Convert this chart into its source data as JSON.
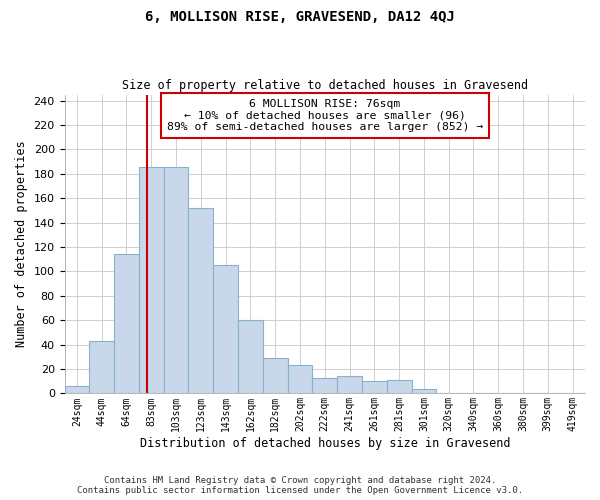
{
  "title": "6, MOLLISON RISE, GRAVESEND, DA12 4QJ",
  "subtitle": "Size of property relative to detached houses in Gravesend",
  "xlabel": "Distribution of detached houses by size in Gravesend",
  "ylabel": "Number of detached properties",
  "footer_line1": "Contains HM Land Registry data © Crown copyright and database right 2024.",
  "footer_line2": "Contains public sector information licensed under the Open Government Licence v3.0.",
  "bar_labels": [
    "24sqm",
    "44sqm",
    "64sqm",
    "83sqm",
    "103sqm",
    "123sqm",
    "143sqm",
    "162sqm",
    "182sqm",
    "202sqm",
    "222sqm",
    "241sqm",
    "261sqm",
    "281sqm",
    "301sqm",
    "320sqm",
    "340sqm",
    "360sqm",
    "380sqm",
    "399sqm",
    "419sqm"
  ],
  "bar_values": [
    6,
    43,
    114,
    186,
    186,
    152,
    105,
    60,
    29,
    23,
    13,
    14,
    10,
    11,
    4,
    0,
    0,
    0,
    0,
    0,
    0
  ],
  "bar_color": "#c8d8ea",
  "bar_edge_color": "#8ab0cc",
  "vline_x_index": 2.82,
  "vline_color": "#cc0000",
  "annotation_line1": "6 MOLLISON RISE: 76sqm",
  "annotation_line2": "← 10% of detached houses are smaller (96)",
  "annotation_line3": "89% of semi-detached houses are larger (852) →",
  "annotation_box_color": "#ffffff",
  "annotation_box_edge_color": "#cc0000",
  "ylim": [
    0,
    245
  ],
  "yticks": [
    0,
    20,
    40,
    60,
    80,
    100,
    120,
    140,
    160,
    180,
    200,
    220,
    240
  ],
  "background_color": "#ffffff",
  "grid_color": "#c8c8c8"
}
